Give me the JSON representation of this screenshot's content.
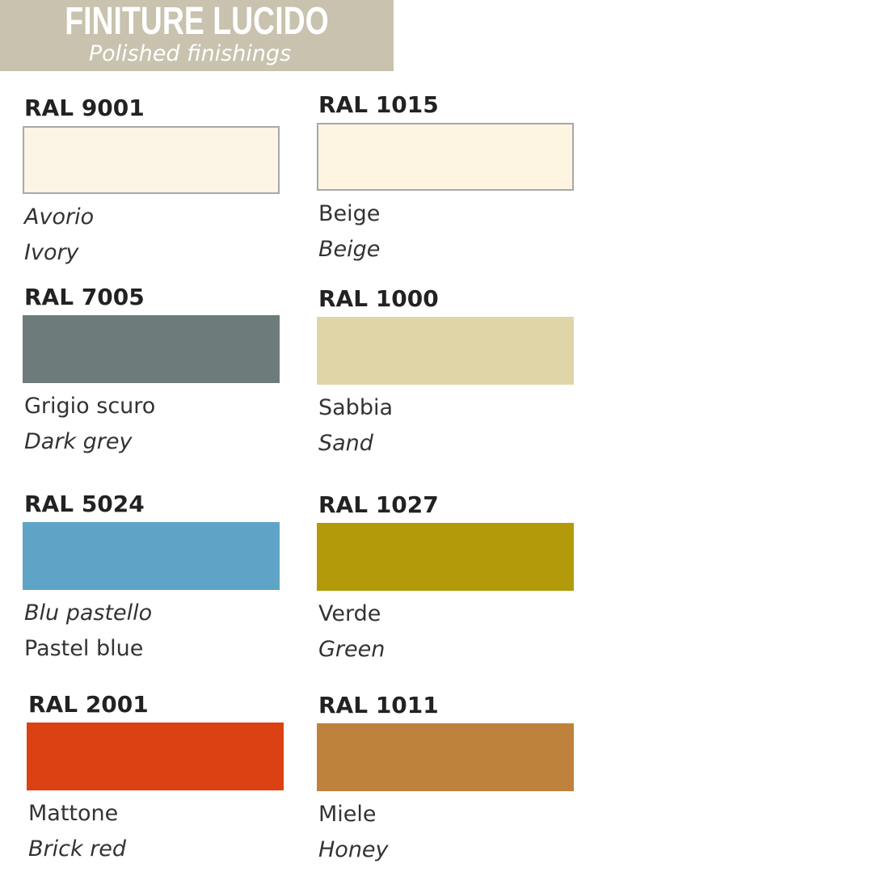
{
  "header": {
    "title": "FINITURE LUCIDO",
    "subtitle": "Polished finishings",
    "background": "#c8c2ae"
  },
  "swatches": [
    {
      "code": "RAL 9001",
      "color": "#fcf4e4",
      "name_it": "Avorio",
      "name_en": "Ivory"
    },
    {
      "code": "RAL 1015",
      "color": "#fdf5e2",
      "name_it": "Beige",
      "name_en": "Beige"
    },
    {
      "code": "RAL 7005",
      "color": "#6d7b7b",
      "name_it": "Grigio scuro",
      "name_en": "Dark grey"
    },
    {
      "code": "RAL 1000",
      "color": "#e0d5a7",
      "name_it": "Sabbia",
      "name_en": "Sand"
    },
    {
      "code": "RAL 5024",
      "color": "#5fa4c7",
      "name_it": "Blu pastello",
      "name_en": "Pastel blue"
    },
    {
      "code": "RAL 1027",
      "color": "#b39a0b",
      "name_it": "Verde",
      "name_en": "Green"
    },
    {
      "code": "RAL 2001",
      "color": "#dc4114",
      "name_it": "Mattone",
      "name_en": "Brick red"
    },
    {
      "code": "RAL 1011",
      "color": "#bf823d",
      "name_it": "Miele",
      "name_en": "Honey"
    }
  ]
}
